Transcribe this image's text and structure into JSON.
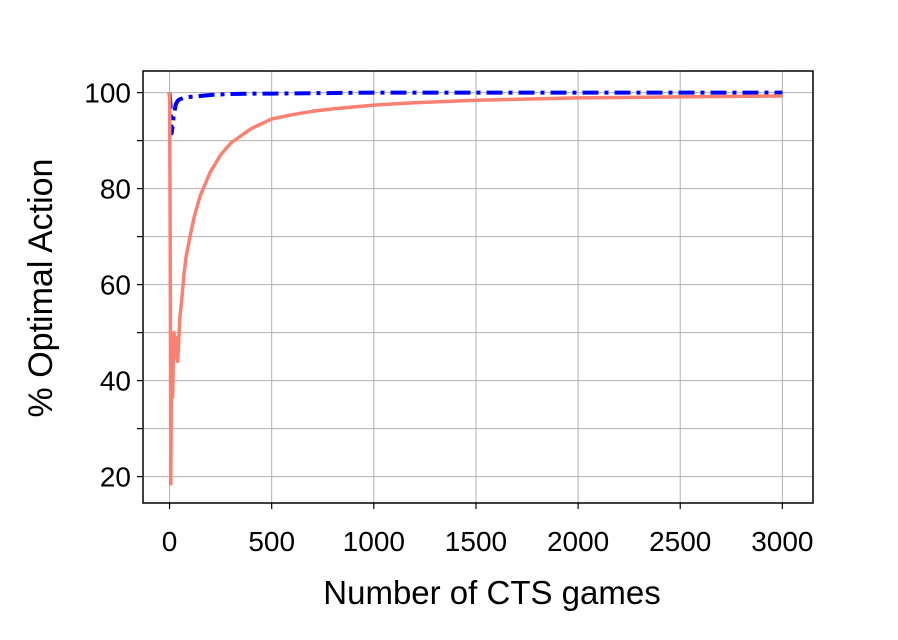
{
  "chart_data": {
    "type": "line",
    "title": "",
    "xlabel": "Number of CTS games",
    "ylabel": "% Optimal Action",
    "xlim": [
      -130,
      3150
    ],
    "ylim": [
      14.5,
      104.5
    ],
    "xticks": [
      0,
      500,
      1000,
      1500,
      2000,
      2500,
      3000
    ],
    "yticks": [
      20,
      40,
      60,
      80,
      100
    ],
    "xtick_labels": [
      "0",
      "500",
      "1000",
      "1500",
      "2000",
      "2500",
      "3000"
    ],
    "ytick_labels": [
      "20",
      "40",
      "60",
      "80",
      "100"
    ],
    "grid": true,
    "legend": "none",
    "series": [
      {
        "color": "#0000ff",
        "style": "dashdot",
        "x": [
          0,
          5,
          10,
          15,
          20,
          30,
          40,
          50,
          75,
          100,
          150,
          200,
          300,
          400,
          500,
          750,
          1000,
          1500,
          2000,
          2500,
          3000
        ],
        "y": [
          100,
          97,
          91.5,
          93,
          95,
          97.5,
          98.3,
          98.6,
          99,
          99.1,
          99.3,
          99.5,
          99.7,
          99.8,
          99.8,
          99.9,
          100,
          100,
          100,
          100,
          100
        ]
      },
      {
        "color": "#fa8072",
        "style": "solid",
        "x": [
          0,
          3,
          6,
          9,
          12,
          15,
          18,
          22,
          26,
          30,
          35,
          40,
          45,
          50,
          60,
          70,
          80,
          100,
          120,
          150,
          200,
          250,
          300,
          400,
          500,
          600,
          700,
          800,
          1000,
          1200,
          1500,
          2000,
          2500,
          3000
        ],
        "y": [
          100,
          70,
          18.5,
          40,
          45,
          36.5,
          43,
          50,
          48,
          49,
          45,
          44,
          48,
          53,
          57,
          62,
          65.5,
          70,
          74,
          78.5,
          83.5,
          87,
          89.5,
          92.5,
          94.5,
          95.4,
          96.1,
          96.6,
          97.4,
          97.9,
          98.4,
          98.9,
          99.1,
          99.3
        ]
      }
    ]
  }
}
